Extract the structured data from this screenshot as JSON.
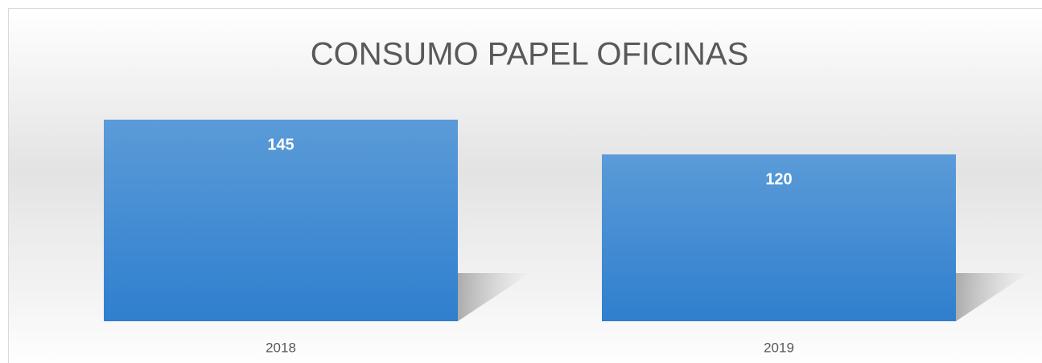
{
  "chart_data": {
    "type": "bar",
    "title": "CONSUMO PAPEL OFICINAS",
    "categories": [
      "2018",
      "2019"
    ],
    "values": [
      145,
      120
    ],
    "color": "#3f8ad4"
  }
}
